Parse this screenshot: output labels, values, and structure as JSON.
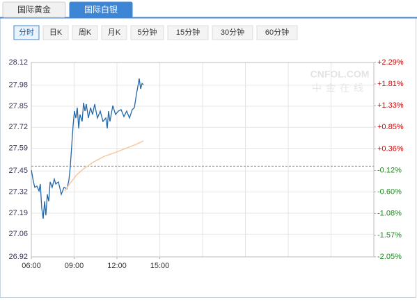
{
  "ui": {
    "tabs": [
      "国际黄金",
      "国际白银"
    ],
    "active_tab": 1,
    "periods": [
      "分时",
      "日K",
      "周K",
      "月K",
      "5分钟",
      "15分钟",
      "30分钟",
      "60分钟"
    ],
    "active_period": 0
  },
  "chart_data": {
    "type": "line",
    "watermark": [
      "CNFOL.COM",
      "中金在线"
    ],
    "xlim": [
      6,
      30
    ],
    "xticks": [
      {
        "value": 6,
        "label": "06:00"
      },
      {
        "value": 9,
        "label": "09:00"
      },
      {
        "value": 12,
        "label": "12:00"
      },
      {
        "value": 15,
        "label": "15:00"
      }
    ],
    "ylim": [
      26.92,
      28.12
    ],
    "yticks": [
      28.12,
      27.98,
      27.85,
      27.72,
      27.59,
      27.45,
      27.32,
      27.19,
      27.06,
      26.92
    ],
    "y2lim": [
      -2.05,
      2.29
    ],
    "y2ticks": [
      {
        "value": 2.29,
        "label": "+2.29%"
      },
      {
        "value": 1.81,
        "label": "+1.81%"
      },
      {
        "value": 1.33,
        "label": "+1.33%"
      },
      {
        "value": 0.85,
        "label": "+0.85%"
      },
      {
        "value": 0.36,
        "label": "+0.36%"
      },
      {
        "value": -0.12,
        "label": "-0.12%"
      },
      {
        "value": -0.6,
        "label": "-0.60%"
      },
      {
        "value": -1.08,
        "label": "-1.08%"
      },
      {
        "value": -1.57,
        "label": "-1.57%"
      },
      {
        "value": -2.05,
        "label": "-2.05%"
      }
    ],
    "reference_line": 27.48,
    "grid": true,
    "series": [
      {
        "color": "#2266aa",
        "x": [
          6.0,
          6.15,
          6.24,
          6.39,
          6.54,
          6.63,
          6.73,
          6.83,
          6.93,
          7.02,
          7.12,
          7.22,
          7.32,
          7.46,
          7.61,
          7.71,
          7.9,
          8.1,
          8.29,
          8.49,
          8.63,
          8.73,
          8.83,
          8.93,
          9.02,
          9.12,
          9.22,
          9.32,
          9.41,
          9.56,
          9.66,
          9.76,
          9.85,
          10.0,
          10.15,
          10.29,
          10.44,
          10.63,
          10.83,
          11.02,
          11.22,
          11.32,
          11.41,
          11.51,
          11.71,
          11.9,
          12.1,
          12.29,
          12.49,
          12.68,
          12.88,
          13.07,
          13.22,
          13.37,
          13.46,
          13.56,
          13.66,
          13.76,
          13.85
        ],
        "values": [
          27.456,
          27.383,
          27.349,
          27.357,
          27.327,
          27.37,
          27.22,
          27.156,
          27.263,
          27.177,
          27.306,
          27.263,
          27.383,
          27.349,
          27.4,
          27.37,
          27.383,
          27.306,
          27.349,
          27.34,
          27.391,
          27.477,
          27.606,
          27.734,
          27.82,
          27.777,
          27.841,
          27.713,
          27.799,
          27.756,
          27.871,
          27.82,
          27.863,
          27.777,
          27.841,
          27.799,
          27.863,
          27.777,
          27.82,
          27.756,
          27.777,
          27.713,
          27.82,
          27.756,
          27.854,
          27.799,
          27.82,
          27.829,
          27.786,
          27.82,
          27.777,
          27.829,
          27.841,
          27.927,
          27.97,
          28.021,
          27.957,
          27.991,
          27.983
        ]
      },
      {
        "color": "#f5c9a0",
        "x": [
          8.34,
          8.68,
          9.17,
          9.66,
          10.39,
          11.12,
          11.85,
          12.59,
          13.32,
          13.85
        ],
        "values": [
          27.327,
          27.37,
          27.426,
          27.464,
          27.507,
          27.541,
          27.563,
          27.589,
          27.614,
          27.636
        ]
      }
    ]
  }
}
